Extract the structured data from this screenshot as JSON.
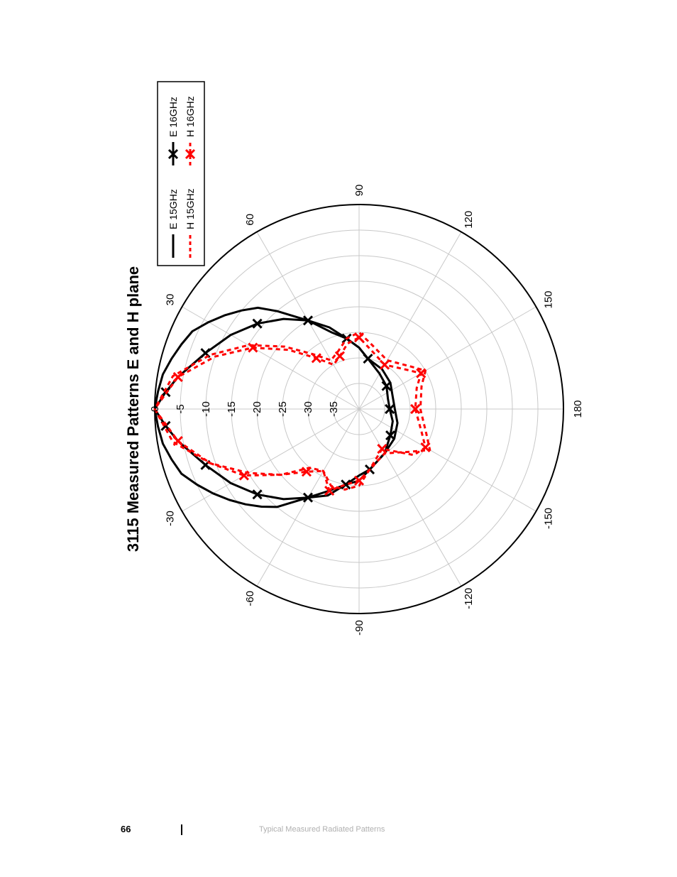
{
  "footer": {
    "page_number": "66",
    "section_title": "Typical Measured Radiated Patterns"
  },
  "chart_data": {
    "type": "polar",
    "title": "3115 Measured Patterns E and H plane",
    "orientation": "rotated 90° counter-clockwise on page",
    "radial_unit": "dB",
    "radial_ticks": [
      0,
      -5,
      -10,
      -15,
      -20,
      -25,
      -30,
      -35
    ],
    "radial_range": [
      -40,
      0
    ],
    "angle_ticks": [
      0,
      30,
      60,
      90,
      120,
      150,
      180,
      -150,
      -120,
      -90,
      -60,
      -30
    ],
    "grid": true,
    "legend": {
      "placement": "top-right",
      "entries": [
        "E 15GHz",
        "E 16GHz",
        "H 15GHz",
        "H 16GHz"
      ]
    },
    "colors": {
      "E": "#000000",
      "H": "#ff0000",
      "grid": "#c8c8c8"
    },
    "series": [
      {
        "name": "E 15GHz",
        "style": "solid",
        "color": "#000000",
        "angles": [
          -180,
          -160,
          -140,
          -120,
          -100,
          -90,
          -80,
          -70,
          -60,
          -50,
          -45,
          -40,
          -35,
          -30,
          -25,
          -20,
          -15,
          -10,
          -5,
          0,
          5,
          10,
          15,
          20,
          25,
          30,
          35,
          40,
          45,
          50,
          60,
          70,
          80,
          90,
          100,
          120,
          140,
          160,
          180
        ],
        "values": [
          -33,
          -32,
          -31,
          -30,
          -28,
          -26,
          -25,
          -23,
          -20,
          -15,
          -13,
          -11,
          -9,
          -7,
          -5,
          -3,
          -2,
          -1,
          -0.5,
          0,
          -0.5,
          -1,
          -2,
          -3,
          -4,
          -6,
          -8,
          -10,
          -12,
          -15,
          -20,
          -24,
          -26,
          -28,
          -30,
          -31,
          -32,
          -33,
          -33
        ]
      },
      {
        "name": "E 16GHz",
        "style": "solid-x",
        "color": "#000000",
        "angles": [
          -180,
          -160,
          -140,
          -120,
          -100,
          -90,
          -80,
          -70,
          -60,
          -50,
          -40,
          -30,
          -20,
          -10,
          -5,
          0,
          5,
          10,
          20,
          30,
          40,
          50,
          60,
          70,
          80,
          90,
          100,
          120,
          140,
          160,
          180
        ],
        "values": [
          -34,
          -33,
          -32,
          -30,
          -28,
          -27,
          -25,
          -22,
          -20,
          -17,
          -14,
          -11,
          -8,
          -4,
          -2,
          0,
          -2,
          -4,
          -8,
          -11,
          -14,
          -17,
          -20,
          -23,
          -26,
          -28,
          -30,
          -32,
          -33,
          -34,
          -34
        ]
      },
      {
        "name": "H 15GHz",
        "style": "dashed",
        "color": "#ff0000",
        "angles": [
          -180,
          -160,
          -150,
          -140,
          -120,
          -100,
          -90,
          -80,
          -70,
          -60,
          -50,
          -40,
          -30,
          -20,
          -10,
          0,
          10,
          20,
          30,
          40,
          50,
          60,
          70,
          80,
          90,
          100,
          120,
          140,
          150,
          160,
          180
        ],
        "values": [
          -28,
          -26,
          -24,
          -27,
          -30,
          -28,
          -25,
          -24,
          -24,
          -26,
          -25,
          -20,
          -15,
          -9,
          -3,
          0,
          -3,
          -9,
          -15,
          -21,
          -26,
          -29,
          -28,
          -26,
          -25,
          -27,
          -29,
          -27,
          -25,
          -27,
          -28
        ]
      },
      {
        "name": "H 16GHz",
        "style": "dashed-x",
        "color": "#ff0000",
        "angles": [
          -180,
          -160,
          -150,
          -140,
          -120,
          -100,
          -90,
          -80,
          -70,
          -60,
          -50,
          -40,
          -30,
          -20,
          -10,
          0,
          10,
          20,
          30,
          40,
          50,
          60,
          70,
          80,
          90,
          100,
          120,
          140,
          150,
          160,
          180
        ],
        "values": [
          -29,
          -27,
          -25,
          -26,
          -31,
          -28,
          -26,
          -25,
          -23,
          -26,
          -24,
          -20,
          -14,
          -9,
          -4,
          0,
          -4,
          -10,
          -16,
          -22,
          -27,
          -30,
          -29,
          -27,
          -26,
          -28,
          -30,
          -28,
          -26,
          -28,
          -29
        ]
      }
    ]
  }
}
